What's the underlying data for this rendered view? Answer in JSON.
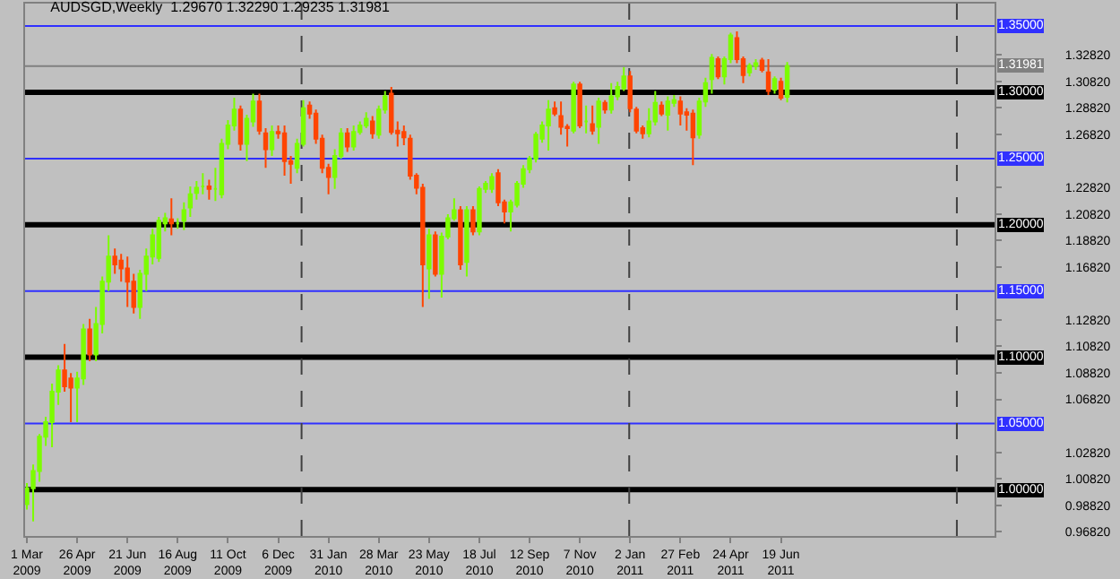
{
  "chart_data": {
    "type": "candlestick",
    "title": "AUDSGD,Weekly  1.29670 1.32290 1.29235 1.31981",
    "x": [
      "2009-03-01",
      "2009-03-08",
      "2009-03-15",
      "2009-03-22",
      "2009-03-29",
      "2009-04-05",
      "2009-04-12",
      "2009-04-19",
      "2009-04-26",
      "2009-05-03",
      "2009-05-10",
      "2009-05-17",
      "2009-05-24",
      "2009-05-31",
      "2009-06-07",
      "2009-06-14",
      "2009-06-21",
      "2009-06-28",
      "2009-07-05",
      "2009-07-12",
      "2009-07-19",
      "2009-07-26",
      "2009-08-02",
      "2009-08-09",
      "2009-08-16",
      "2009-08-23",
      "2009-08-30",
      "2009-09-06",
      "2009-09-13",
      "2009-09-20",
      "2009-09-27",
      "2009-10-04",
      "2009-10-11",
      "2009-10-18",
      "2009-10-25",
      "2009-11-01",
      "2009-11-08",
      "2009-11-15",
      "2009-11-22",
      "2009-11-29",
      "2009-12-06",
      "2009-12-13",
      "2009-12-20",
      "2009-12-27",
      "2010-01-03",
      "2010-01-10",
      "2010-01-17",
      "2010-01-24",
      "2010-01-31",
      "2010-02-07",
      "2010-02-14",
      "2010-02-21",
      "2010-02-28",
      "2010-03-07",
      "2010-03-14",
      "2010-03-21",
      "2010-03-28",
      "2010-04-04",
      "2010-04-11",
      "2010-04-18",
      "2010-04-25",
      "2010-05-02",
      "2010-05-09",
      "2010-05-16",
      "2010-05-23",
      "2010-05-30",
      "2010-06-06",
      "2010-06-13",
      "2010-06-20",
      "2010-06-27",
      "2010-07-04",
      "2010-07-11",
      "2010-07-18",
      "2010-07-25",
      "2010-08-01",
      "2010-08-08",
      "2010-08-15",
      "2010-08-22",
      "2010-08-29",
      "2010-09-05",
      "2010-09-12",
      "2010-09-19",
      "2010-09-26",
      "2010-10-03",
      "2010-10-10",
      "2010-10-17",
      "2010-10-24",
      "2010-10-31",
      "2010-11-07",
      "2010-11-14",
      "2010-11-21",
      "2010-11-28",
      "2010-12-05",
      "2010-12-12",
      "2010-12-19",
      "2010-12-26",
      "2011-01-02",
      "2011-01-09",
      "2011-01-16",
      "2011-01-23",
      "2011-01-30",
      "2011-02-06",
      "2011-02-13",
      "2011-02-20",
      "2011-02-27",
      "2011-03-06",
      "2011-03-13",
      "2011-03-20",
      "2011-03-27",
      "2011-04-03",
      "2011-04-10",
      "2011-04-17",
      "2011-04-24",
      "2011-05-01",
      "2011-05-08",
      "2011-05-15",
      "2011-05-22",
      "2011-05-29",
      "2011-06-05",
      "2011-06-12",
      "2011-06-19",
      "2011-06-26"
    ],
    "ohlc": [
      [
        0.989,
        1.005,
        0.985,
        1.001
      ],
      [
        1.001,
        1.019,
        0.976,
        1.014
      ],
      [
        1.014,
        1.042,
        1.006,
        1.04
      ],
      [
        1.04,
        1.055,
        1.033,
        1.051
      ],
      [
        1.051,
        1.08,
        1.032,
        1.074
      ],
      [
        1.074,
        1.094,
        1.064,
        1.09
      ],
      [
        1.09,
        1.11,
        1.074,
        1.078
      ],
      [
        1.084,
        1.088,
        1.051,
        1.077
      ],
      [
        1.077,
        1.089,
        1.051,
        1.084
      ],
      [
        1.084,
        1.125,
        1.079,
        1.121
      ],
      [
        1.121,
        1.129,
        1.097,
        1.102
      ],
      [
        1.102,
        1.138,
        1.097,
        1.125
      ],
      [
        1.125,
        1.161,
        1.118,
        1.157
      ],
      [
        1.157,
        1.192,
        1.15,
        1.176
      ],
      [
        1.176,
        1.182,
        1.163,
        1.17
      ],
      [
        1.173,
        1.178,
        1.157,
        1.167
      ],
      [
        1.167,
        1.176,
        1.138,
        1.157
      ],
      [
        1.157,
        1.163,
        1.133,
        1.138
      ],
      [
        1.138,
        1.166,
        1.129,
        1.163
      ],
      [
        1.163,
        1.182,
        1.15,
        1.176
      ],
      [
        1.176,
        1.197,
        1.17,
        1.192
      ],
      [
        1.175,
        1.206,
        1.172,
        1.203
      ],
      [
        1.201,
        1.209,
        1.195,
        1.205
      ],
      [
        1.204,
        1.22,
        1.192,
        1.201
      ],
      [
        1.201,
        1.205,
        1.197,
        1.201
      ],
      [
        1.203,
        1.217,
        1.196,
        1.211
      ],
      [
        1.213,
        1.229,
        1.206,
        1.223
      ],
      [
        1.224,
        1.233,
        1.219,
        1.228
      ],
      [
        1.229,
        1.239,
        1.223,
        1.229
      ],
      [
        1.229,
        1.234,
        1.219,
        1.227
      ],
      [
        1.227,
        1.243,
        1.218,
        1.227
      ],
      [
        1.223,
        1.265,
        1.22,
        1.261
      ],
      [
        1.261,
        1.279,
        1.257,
        1.275
      ],
      [
        1.275,
        1.296,
        1.271,
        1.287
      ],
      [
        1.287,
        1.29,
        1.256,
        1.261
      ],
      [
        1.261,
        1.283,
        1.248,
        1.28
      ],
      [
        1.278,
        1.299,
        1.274,
        1.293
      ],
      [
        1.293,
        1.299,
        1.268,
        1.271
      ],
      [
        1.269,
        1.273,
        1.243,
        1.257
      ],
      [
        1.257,
        1.275,
        1.252,
        1.27
      ],
      [
        1.27,
        1.275,
        1.265,
        1.269
      ],
      [
        1.269,
        1.275,
        1.237,
        1.248
      ],
      [
        1.248,
        1.252,
        1.231,
        1.246
      ],
      [
        1.243,
        1.265,
        1.239,
        1.261
      ],
      [
        1.261,
        1.294,
        1.259,
        1.288
      ],
      [
        1.29,
        1.293,
        1.28,
        1.284
      ],
      [
        1.284,
        1.287,
        1.261,
        1.265
      ],
      [
        1.265,
        1.268,
        1.239,
        1.243
      ],
      [
        1.243,
        1.246,
        1.223,
        1.236
      ],
      [
        1.236,
        1.257,
        1.227,
        1.252
      ],
      [
        1.252,
        1.273,
        1.25,
        1.269
      ],
      [
        1.269,
        1.273,
        1.255,
        1.259
      ],
      [
        1.259,
        1.275,
        1.256,
        1.27
      ],
      [
        1.27,
        1.278,
        1.268,
        1.275
      ],
      [
        1.275,
        1.285,
        1.273,
        1.28
      ],
      [
        1.278,
        1.282,
        1.265,
        1.269
      ],
      [
        1.268,
        1.29,
        1.265,
        1.287
      ],
      [
        1.287,
        1.301,
        1.284,
        1.297
      ],
      [
        1.299,
        1.304,
        1.268,
        1.27
      ],
      [
        1.271,
        1.278,
        1.259,
        1.269
      ],
      [
        1.27,
        1.275,
        1.26,
        1.266
      ],
      [
        1.265,
        1.268,
        1.234,
        1.237
      ],
      [
        1.237,
        1.239,
        1.223,
        1.228
      ],
      [
        1.228,
        1.231,
        1.138,
        1.17
      ],
      [
        1.167,
        1.197,
        1.144,
        1.192
      ],
      [
        1.192,
        1.195,
        1.161,
        1.163
      ],
      [
        1.163,
        1.194,
        1.145,
        1.191
      ],
      [
        1.191,
        1.208,
        1.189,
        1.205
      ],
      [
        1.205,
        1.22,
        1.203,
        1.211
      ],
      [
        1.211,
        1.214,
        1.166,
        1.17
      ],
      [
        1.172,
        1.214,
        1.161,
        1.211
      ],
      [
        1.211,
        1.214,
        1.192,
        1.195
      ],
      [
        1.195,
        1.229,
        1.192,
        1.227
      ],
      [
        1.227,
        1.233,
        1.224,
        1.231
      ],
      [
        1.227,
        1.239,
        1.224,
        1.236
      ],
      [
        1.239,
        1.242,
        1.214,
        1.217
      ],
      [
        1.217,
        1.219,
        1.201,
        1.21
      ],
      [
        1.21,
        1.219,
        1.195,
        1.217
      ],
      [
        1.215,
        1.233,
        1.213,
        1.231
      ],
      [
        1.231,
        1.245,
        1.228,
        1.242
      ],
      [
        1.242,
        1.252,
        1.239,
        1.25
      ],
      [
        1.25,
        1.27,
        1.247,
        1.268
      ],
      [
        1.265,
        1.278,
        1.262,
        1.275
      ],
      [
        1.275,
        1.294,
        1.256,
        1.287
      ],
      [
        1.288,
        1.293,
        1.282,
        1.284
      ],
      [
        1.282,
        1.293,
        1.268,
        1.274
      ],
      [
        1.274,
        1.276,
        1.259,
        1.273
      ],
      [
        1.271,
        1.308,
        1.269,
        1.306
      ],
      [
        1.306,
        1.308,
        1.273,
        1.275
      ],
      [
        1.278,
        1.29,
        1.269,
        1.278
      ],
      [
        1.276,
        1.29,
        1.268,
        1.271
      ],
      [
        1.274,
        1.296,
        1.261,
        1.293
      ],
      [
        1.292,
        1.294,
        1.284,
        1.287
      ],
      [
        1.287,
        1.307,
        1.284,
        1.297
      ],
      [
        1.297,
        1.308,
        1.294,
        1.304
      ],
      [
        1.303,
        1.319,
        1.301,
        1.312
      ],
      [
        1.312,
        1.316,
        1.285,
        1.288
      ],
      [
        1.287,
        1.289,
        1.269,
        1.271
      ],
      [
        1.273,
        1.275,
        1.265,
        1.269
      ],
      [
        1.269,
        1.288,
        1.266,
        1.278
      ],
      [
        1.278,
        1.301,
        1.275,
        1.292
      ],
      [
        1.29,
        1.293,
        1.282,
        1.284
      ],
      [
        1.283,
        1.297,
        1.271,
        1.293
      ],
      [
        1.292,
        1.298,
        1.289,
        1.294
      ],
      [
        1.293,
        1.297,
        1.275,
        1.284
      ],
      [
        1.285,
        1.288,
        1.271,
        1.283
      ],
      [
        1.284,
        1.287,
        1.245,
        1.266
      ],
      [
        1.268,
        1.296,
        1.265,
        1.293
      ],
      [
        1.293,
        1.311,
        1.289,
        1.307
      ],
      [
        1.31,
        1.329,
        1.299,
        1.326
      ],
      [
        1.325,
        1.327,
        1.31,
        1.312
      ],
      [
        1.312,
        1.327,
        1.306,
        1.325
      ],
      [
        1.325,
        1.345,
        1.322,
        1.343
      ],
      [
        1.341,
        1.346,
        1.322,
        1.325
      ],
      [
        1.325,
        1.327,
        1.307,
        1.313
      ],
      [
        1.315,
        1.322,
        1.312,
        1.32
      ],
      [
        1.32,
        1.325,
        1.317,
        1.322
      ],
      [
        1.324,
        1.326,
        1.315,
        1.317
      ],
      [
        1.315,
        1.325,
        1.298,
        1.301
      ],
      [
        1.302,
        1.312,
        1.299,
        1.31
      ],
      [
        1.308,
        1.311,
        1.294,
        1.296
      ],
      [
        1.2967,
        1.3229,
        1.29235,
        1.31981
      ]
    ],
    "colors": [
      "#7cfc00",
      "#7cfc00",
      "#7cfc00",
      "#7cfc00",
      "#7cfc00",
      "#7cfc00",
      "#ff4500",
      "#ff4500",
      "#7cfc00",
      "#7cfc00",
      "#ff4500",
      "#7cfc00",
      "#7cfc00",
      "#7cfc00",
      "#ff4500",
      "#ff4500",
      "#ff4500",
      "#ff4500",
      "#7cfc00",
      "#7cfc00",
      "#7cfc00",
      "#7cfc00",
      "#7cfc00",
      "#ff4500",
      "#7cfc00",
      "#7cfc00",
      "#7cfc00",
      "#7cfc00",
      "#7cfc00",
      "#ff4500",
      "#7cfc00",
      "#7cfc00",
      "#7cfc00",
      "#7cfc00",
      "#ff4500",
      "#7cfc00",
      "#7cfc00",
      "#ff4500",
      "#ff4500",
      "#7cfc00",
      "#ff4500",
      "#ff4500",
      "#ff4500",
      "#7cfc00",
      "#7cfc00",
      "#ff4500",
      "#ff4500",
      "#ff4500",
      "#ff4500",
      "#7cfc00",
      "#7cfc00",
      "#ff4500",
      "#7cfc00",
      "#7cfc00",
      "#7cfc00",
      "#ff4500",
      "#7cfc00",
      "#7cfc00",
      "#ff4500",
      "#ff4500",
      "#ff4500",
      "#ff4500",
      "#ff4500",
      "#ff4500",
      "#7cfc00",
      "#ff4500",
      "#7cfc00",
      "#7cfc00",
      "#7cfc00",
      "#ff4500",
      "#7cfc00",
      "#ff4500",
      "#7cfc00",
      "#7cfc00",
      "#7cfc00",
      "#ff4500",
      "#ff4500",
      "#7cfc00",
      "#7cfc00",
      "#7cfc00",
      "#7cfc00",
      "#7cfc00",
      "#7cfc00",
      "#7cfc00",
      "#ff4500",
      "#ff4500",
      "#ff4500",
      "#7cfc00",
      "#ff4500",
      "#7cfc00",
      "#ff4500",
      "#7cfc00",
      "#ff4500",
      "#7cfc00",
      "#7cfc00",
      "#7cfc00",
      "#ff4500",
      "#ff4500",
      "#ff4500",
      "#7cfc00",
      "#7cfc00",
      "#ff4500",
      "#7cfc00",
      "#7cfc00",
      "#ff4500",
      "#ff4500",
      "#ff4500",
      "#7cfc00",
      "#7cfc00",
      "#7cfc00",
      "#ff4500",
      "#7cfc00",
      "#7cfc00",
      "#ff4500",
      "#ff4500",
      "#7cfc00",
      "#7cfc00",
      "#ff4500",
      "#ff4500",
      "#7cfc00",
      "#ff4500",
      "#7cfc00"
    ],
    "xlim": [
      "2009-02-27",
      "2012-02-12"
    ],
    "xticks": [
      {
        "value": "2009-03-01",
        "label": "1 Mar 2009"
      },
      {
        "value": "2009-04-26",
        "label": "26 Apr 2009"
      },
      {
        "value": "2009-06-21",
        "label": "21 Jun 2009"
      },
      {
        "value": "2009-08-16",
        "label": "16 Aug 2009"
      },
      {
        "value": "2009-10-11",
        "label": "11 Oct 2009"
      },
      {
        "value": "2009-12-06",
        "label": "6 Dec 2009"
      },
      {
        "value": "2010-01-31",
        "label": "31 Jan 2010"
      },
      {
        "value": "2010-03-28",
        "label": "28 Mar 2010"
      },
      {
        "value": "2010-05-23",
        "label": "23 May 2010"
      },
      {
        "value": "2010-07-18",
        "label": "18 Jul 2010"
      },
      {
        "value": "2010-09-12",
        "label": "12 Sep 2010"
      },
      {
        "value": "2010-11-07",
        "label": "7 Nov 2010"
      },
      {
        "value": "2011-01-02",
        "label": "2 Jan 2011"
      },
      {
        "value": "2011-02-27",
        "label": "27 Feb 2011"
      },
      {
        "value": "2011-04-24",
        "label": "24 Apr 2011"
      },
      {
        "value": "2011-06-19",
        "label": "19 Jun 2011"
      }
    ],
    "ylim": [
      0.965,
      1.367
    ],
    "yticks": [
      {
        "value": 1.3282,
        "label": "1.32820"
      },
      {
        "value": 1.3082,
        "label": "1.30820"
      },
      {
        "value": 1.2882,
        "label": "1.28820"
      },
      {
        "value": 1.2682,
        "label": "1.26820"
      },
      {
        "value": 1.2282,
        "label": "1.22820"
      },
      {
        "value": 1.2082,
        "label": "1.20820"
      },
      {
        "value": 1.1882,
        "label": "1.18820"
      },
      {
        "value": 1.1682,
        "label": "1.16820"
      },
      {
        "value": 1.1282,
        "label": "1.12820"
      },
      {
        "value": 1.1082,
        "label": "1.10820"
      },
      {
        "value": 1.0882,
        "label": "1.08820"
      },
      {
        "value": 1.0682,
        "label": "1.06820"
      },
      {
        "value": 1.0282,
        "label": "1.02820"
      },
      {
        "value": 1.0082,
        "label": "1.00820"
      },
      {
        "value": 0.9882,
        "label": "0.98820"
      },
      {
        "value": 0.9682,
        "label": "0.96820"
      }
    ],
    "ref_lines": [
      {
        "axis": "y",
        "value": 1.35,
        "label": "1.35000",
        "color": "#3030ff"
      },
      {
        "axis": "y",
        "value": 1.31981,
        "label": "1.31981",
        "color": "#808080"
      },
      {
        "axis": "y",
        "value": 1.3,
        "label": "1.30000",
        "color": "#000000"
      },
      {
        "axis": "y",
        "value": 1.25,
        "label": "1.25000",
        "color": "#3030ff"
      },
      {
        "axis": "y",
        "value": 1.2,
        "label": "1.20000",
        "color": "#000000"
      },
      {
        "axis": "y",
        "value": 1.15,
        "label": "1.15000",
        "color": "#3030ff"
      },
      {
        "axis": "y",
        "value": 1.1,
        "label": "1.10000",
        "color": "#000000"
      },
      {
        "axis": "y",
        "value": 1.05,
        "label": "1.05000",
        "color": "#3030ff"
      },
      {
        "axis": "y",
        "value": 1.0,
        "label": "1.00000",
        "color": "#000000"
      },
      {
        "axis": "x",
        "value": "2010-01-01",
        "color": "#404040",
        "line_style": "dashed"
      },
      {
        "axis": "x",
        "value": "2011-01-01",
        "color": "#404040",
        "line_style": "dashed"
      },
      {
        "axis": "x",
        "value": "2012-01-01",
        "color": "#404040",
        "line_style": "dashed"
      }
    ]
  }
}
